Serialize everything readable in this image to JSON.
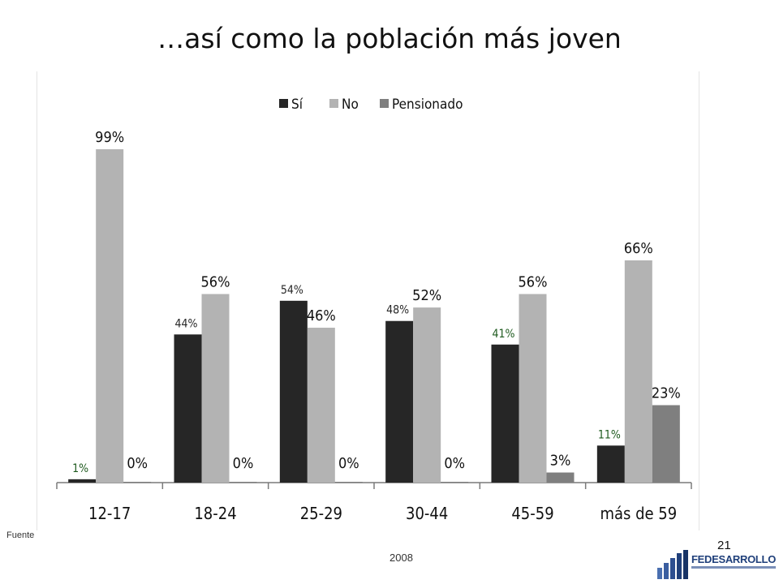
{
  "slide": {
    "title": "…así como la población más joven",
    "source_prefix": "Fuente",
    "year": "2008",
    "page_number": "21",
    "logo_text": "FEDESARROLLO"
  },
  "colors": {
    "Sí": "#262626",
    "No": "#b3b3b3",
    "Pensionado": "#7f7f7f",
    "label_green": "#1e5a1e",
    "brand_blue": "#1f3f7a"
  },
  "chart_data": {
    "type": "bar",
    "categories": [
      "12-17",
      "18-24",
      "25-29",
      "30-44",
      "45-59",
      "más de 59"
    ],
    "series": [
      {
        "name": "Sí",
        "values": [
          1,
          44,
          54,
          48,
          41,
          11
        ],
        "labels": [
          "1%",
          "44%",
          "54%",
          "48%",
          "41%",
          "11%"
        ]
      },
      {
        "name": "No",
        "values": [
          99,
          56,
          46,
          52,
          56,
          66
        ],
        "labels": [
          "99%",
          "56%",
          "46%",
          "52%",
          "56%",
          "66%"
        ]
      },
      {
        "name": "Pensionado",
        "values": [
          0,
          0,
          0,
          0,
          3,
          23
        ],
        "labels": [
          "0%",
          "0%",
          "0%",
          "0%",
          "3%",
          "23%"
        ]
      }
    ],
    "ylim": [
      0,
      100
    ],
    "legend_position": "top",
    "grid": false
  }
}
